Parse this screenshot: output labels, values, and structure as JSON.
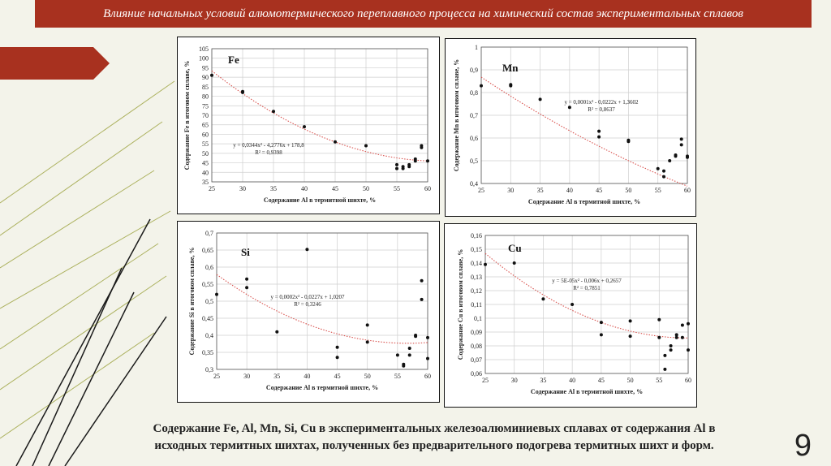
{
  "header": {
    "title": "Влияние начальных условий алюмотермического переплавного процесса на химический состав экспериментальных сплавов"
  },
  "caption": {
    "line1": "Содержание Fe, Al, Mn, Si, Cu  в экспериментальных железоалюминиевых сплавах от содержания Al в",
    "line2": "исходных термитных шихтах, полученных без предварительного подогрева термитных шихт и форм."
  },
  "page_number": "9",
  "colors": {
    "title_bar": "#a8311f",
    "trend": "#d9534f",
    "decor": "#9aa03a"
  },
  "chart_data": [
    {
      "type": "scatter",
      "element": "Fe",
      "xlabel": "Содержание Al в термитной шихте, %",
      "ylabel": "Содержание Fe в итоговом сплаве, %",
      "xlim": [
        25,
        60
      ],
      "ylim": [
        35,
        105
      ],
      "xticks": [
        "25",
        "30",
        "35",
        "40",
        "45",
        "50",
        "55",
        "60"
      ],
      "yticks": [
        "35",
        "40",
        "45",
        "50",
        "55",
        "60",
        "65",
        "70",
        "75",
        "80",
        "85",
        "90",
        "95",
        "100",
        "105"
      ],
      "grid": true,
      "points": [
        [
          25,
          91
        ],
        [
          30,
          82.5
        ],
        [
          30,
          82
        ],
        [
          35,
          72
        ],
        [
          40,
          64
        ],
        [
          45,
          56
        ],
        [
          50,
          54
        ],
        [
          55,
          44
        ],
        [
          55,
          42
        ],
        [
          56,
          42
        ],
        [
          56,
          43
        ],
        [
          57,
          44
        ],
        [
          57,
          43
        ],
        [
          58,
          47
        ],
        [
          58,
          46
        ],
        [
          59,
          54
        ],
        [
          59,
          53
        ],
        [
          60,
          46
        ]
      ],
      "trend": {
        "a": 0.0344,
        "b": -4.2776,
        "c": 178.8
      },
      "equation": "y = 0,0344x² - 4,2776x + 178,8",
      "r2": "R² = 0,9398"
    },
    {
      "type": "scatter",
      "element": "Mn",
      "xlabel": "Содержание Al в термитной шихте, %",
      "ylabel": "Содержание Mn в итоговом сплаве, %",
      "xlim": [
        25,
        60
      ],
      "ylim": [
        0.4,
        1.0
      ],
      "xticks": [
        "25",
        "30",
        "35",
        "40",
        "45",
        "50",
        "55",
        "60"
      ],
      "yticks": [
        "0,4",
        "0,5",
        "0,6",
        "0,7",
        "0,8",
        "0,9",
        "1"
      ],
      "grid": true,
      "points": [
        [
          25,
          0.83
        ],
        [
          30,
          0.835
        ],
        [
          30,
          0.83
        ],
        [
          35,
          0.77
        ],
        [
          40,
          0.735
        ],
        [
          45,
          0.63
        ],
        [
          45,
          0.605
        ],
        [
          50,
          0.59
        ],
        [
          50,
          0.585
        ],
        [
          55,
          0.465
        ],
        [
          56,
          0.455
        ],
        [
          56,
          0.43
        ],
        [
          57,
          0.5
        ],
        [
          58,
          0.52
        ],
        [
          58,
          0.525
        ],
        [
          59,
          0.595
        ],
        [
          59,
          0.57
        ],
        [
          60,
          0.52
        ],
        [
          60,
          0.515
        ]
      ],
      "trend": {
        "a": 0.0001,
        "b": -0.0222,
        "c": 1.3602
      },
      "equation": "y = 0,0001x² - 0,0222x + 1,3602",
      "r2": "R² = 0,8637"
    },
    {
      "type": "scatter",
      "element": "Si",
      "xlabel": "Содержание Al в термитной шихте, %",
      "ylabel": "Содержание Si в итоговом сплаве, %",
      "xlim": [
        25,
        60
      ],
      "ylim": [
        0.3,
        0.7
      ],
      "xticks": [
        "25",
        "30",
        "35",
        "40",
        "45",
        "50",
        "55",
        "60"
      ],
      "yticks": [
        "0,3",
        "0,35",
        "0,4",
        "0,45",
        "0,5",
        "0,55",
        "0,6",
        "0,65",
        "0,7"
      ],
      "grid": true,
      "points": [
        [
          25,
          0.52
        ],
        [
          30,
          0.565
        ],
        [
          30,
          0.54
        ],
        [
          35,
          0.41
        ],
        [
          40,
          0.652
        ],
        [
          45,
          0.365
        ],
        [
          45,
          0.335
        ],
        [
          50,
          0.43
        ],
        [
          50,
          0.38
        ],
        [
          55,
          0.342
        ],
        [
          56,
          0.315
        ],
        [
          56,
          0.31
        ],
        [
          57,
          0.342
        ],
        [
          57,
          0.362
        ],
        [
          58,
          0.4
        ],
        [
          58,
          0.397
        ],
        [
          59,
          0.56
        ],
        [
          59,
          0.505
        ],
        [
          60,
          0.393
        ],
        [
          60,
          0.332
        ]
      ],
      "trend": {
        "a": 0.0002,
        "b": -0.0227,
        "c": 1.0207
      },
      "equation": "y = 0,0002x² - 0,0227x + 1,0207",
      "r2": "R² = 0,3246"
    },
    {
      "type": "scatter",
      "element": "Cu",
      "xlabel": "Содержание Al в термитной шихте, %",
      "ylabel": "Содержание Cu в итоговом сплаве, %",
      "xlim": [
        25,
        60
      ],
      "ylim": [
        0.06,
        0.16
      ],
      "xticks": [
        "25",
        "30",
        "35",
        "40",
        "45",
        "50",
        "55",
        "60"
      ],
      "yticks": [
        "0,06",
        "0,07",
        "0,08",
        "0,09",
        "0,1",
        "0,11",
        "0,12",
        "0,13",
        "0,14",
        "0,15",
        "0,16"
      ],
      "grid": true,
      "points": [
        [
          25,
          0.139
        ],
        [
          30,
          0.14
        ],
        [
          35,
          0.114
        ],
        [
          40,
          0.11
        ],
        [
          45,
          0.097
        ],
        [
          45,
          0.088
        ],
        [
          50,
          0.098
        ],
        [
          50,
          0.087
        ],
        [
          55,
          0.099
        ],
        [
          55,
          0.086
        ],
        [
          56,
          0.073
        ],
        [
          56,
          0.063
        ],
        [
          57,
          0.08
        ],
        [
          57,
          0.077
        ],
        [
          58,
          0.088
        ],
        [
          58,
          0.086
        ],
        [
          59,
          0.095
        ],
        [
          59,
          0.086
        ],
        [
          60,
          0.096
        ],
        [
          60,
          0.077
        ]
      ],
      "trend": {
        "a": 5e-05,
        "b": -0.006,
        "c": 0.2657
      },
      "equation": "y = 5E-05x² - 0,006x + 0,2657",
      "r2": "R² = 0,7851"
    }
  ]
}
